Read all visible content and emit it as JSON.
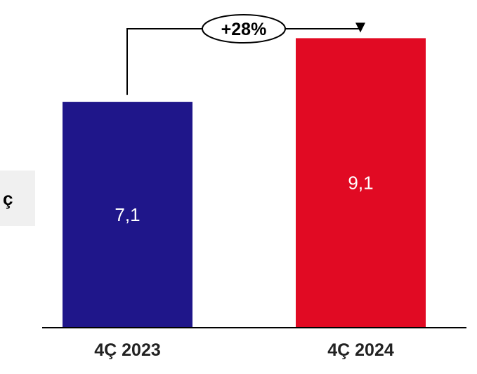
{
  "side_box": {
    "label": "ç"
  },
  "chart_data": {
    "type": "bar",
    "categories": [
      "4Ç 2023",
      "4Ç 2024"
    ],
    "values": [
      7.1,
      9.1
    ],
    "value_labels": [
      "7,1",
      "9,1"
    ],
    "title": "",
    "xlabel": "",
    "ylabel": "",
    "ylim": [
      0,
      10.3
    ],
    "grid": false,
    "legend": "none",
    "annotation": {
      "label": "+28%",
      "from_category": 0,
      "to_category": 1
    },
    "colors": [
      "#1f168a",
      "#e10a23"
    ],
    "value_label_color": "#ffffff",
    "axis_color": "#000000"
  }
}
